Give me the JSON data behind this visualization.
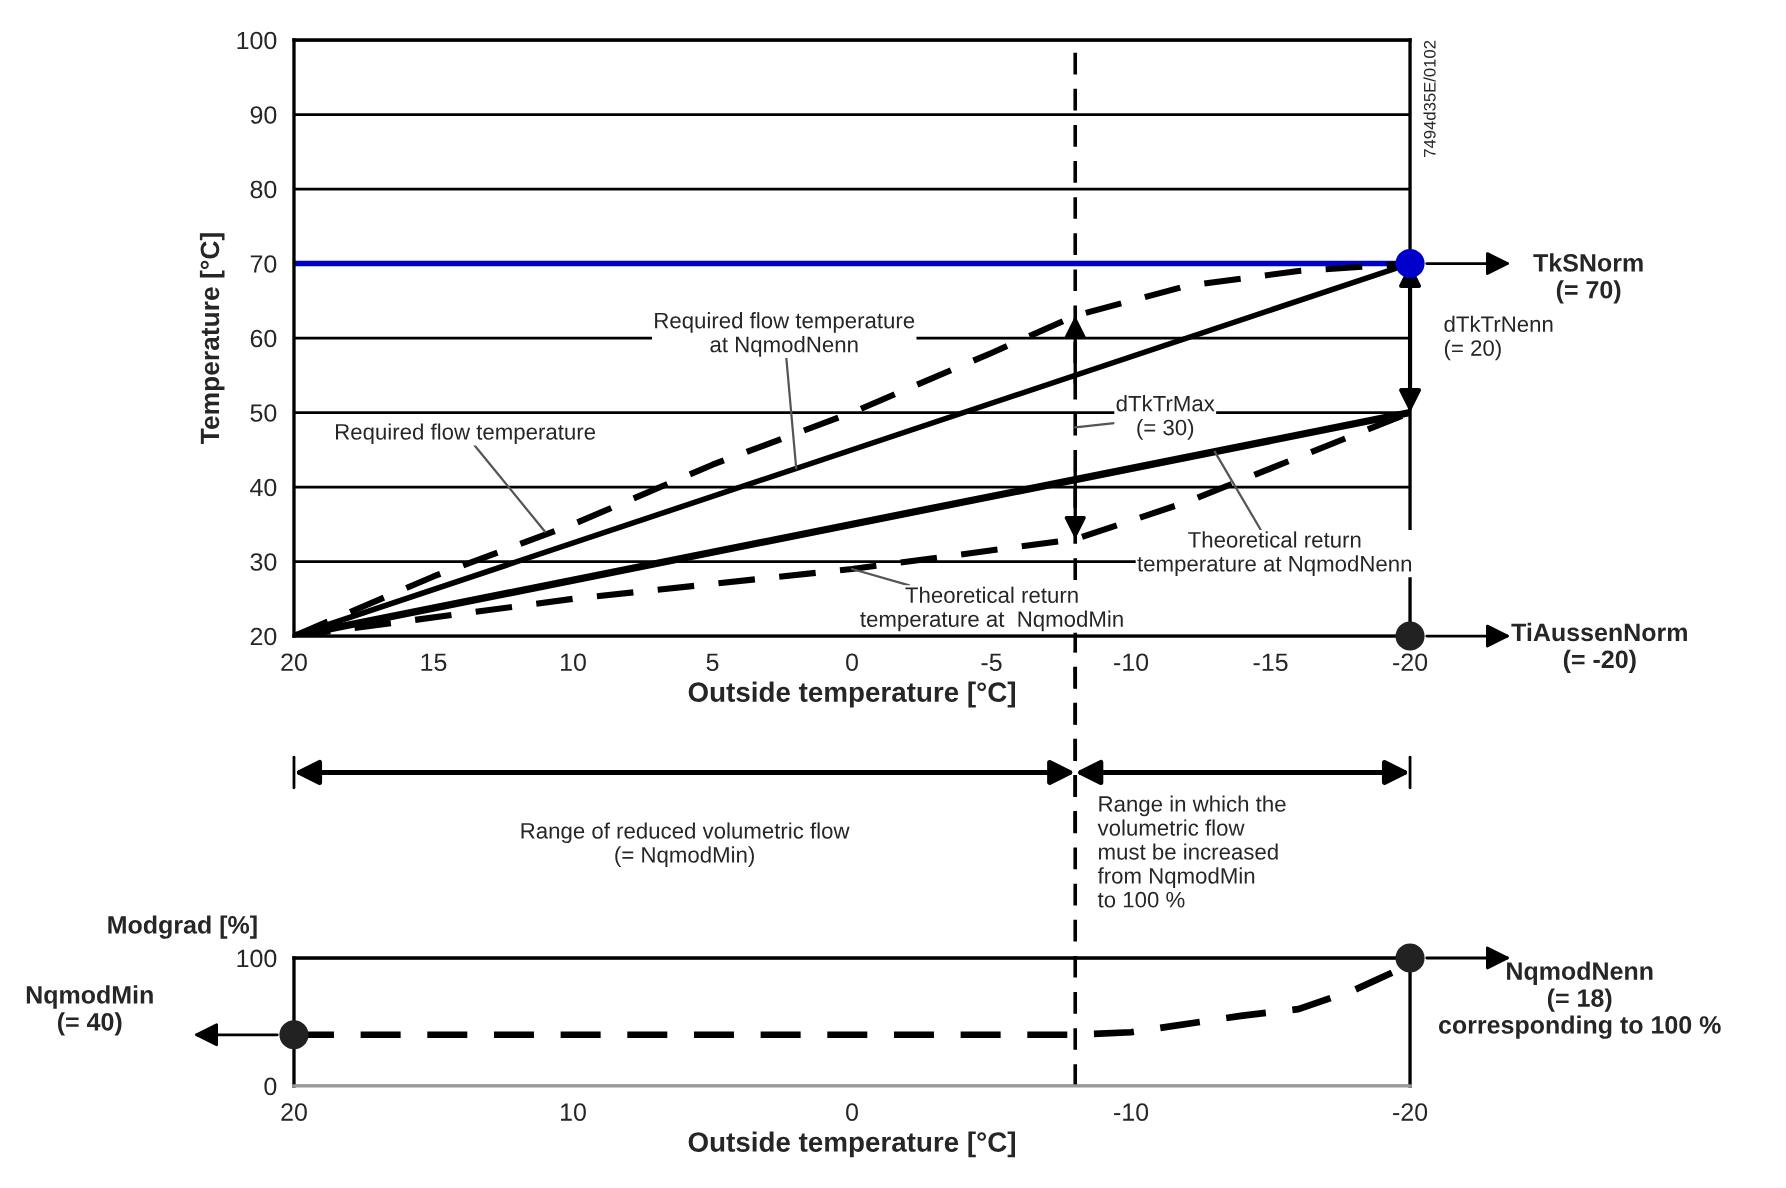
{
  "chart_data": [
    {
      "type": "line",
      "ylabel": "Temperature [°C]",
      "xlabel": "Outside temperature [°C]",
      "xlim": [
        20,
        -20
      ],
      "ylim": [
        20,
        100
      ],
      "xticks": [
        20,
        15,
        10,
        5,
        0,
        -5,
        -10,
        -15,
        -20
      ],
      "yticks": [
        20,
        30,
        40,
        50,
        60,
        70,
        80,
        90,
        100
      ],
      "grid": "y",
      "legend": false,
      "series": [
        {
          "color": "#000000",
          "line_style": "solid",
          "x": [
            20,
            -20
          ],
          "values": [
            20,
            70
          ]
        },
        {
          "color": "#000000",
          "line_style": "solid",
          "x": [
            20,
            -20
          ],
          "values": [
            20,
            50
          ]
        },
        {
          "color": "#000000",
          "line_style": "dashed",
          "x": [
            20,
            15,
            10,
            5,
            0,
            -5,
            -8,
            -12,
            -16,
            -20
          ],
          "values": [
            20,
            28,
            35,
            43,
            50,
            58,
            63,
            67,
            69,
            70
          ]
        },
        {
          "color": "#000000",
          "line_style": "dashed",
          "x": [
            20,
            10,
            0,
            -8,
            -12,
            -16,
            -20
          ],
          "values": [
            20,
            25,
            29,
            33,
            38,
            44,
            50
          ]
        },
        {
          "type": "scatter",
          "color": "#0000cc",
          "x": [
            -20
          ],
          "values": [
            70
          ]
        },
        {
          "type": "scatter",
          "color": "#222222",
          "x": [
            -20
          ],
          "values": [
            20
          ]
        }
      ],
      "ref_lines": [
        {
          "axis": "y",
          "value": 70,
          "color": "#0000cc",
          "line_style": "solid"
        },
        {
          "axis": "x",
          "value": -8,
          "color": "#000000",
          "line_style": "dashed"
        }
      ],
      "annotations": [
        "TkSNorm\n(= 70)",
        "TiAussenNorm\n(= -20)",
        "dTkTrNenn\n(= 20)",
        {
          "text": "dTkTrMax\n(= 30)",
          "x": -8,
          "y": 48
        },
        {
          "text": "Required flow temperature\nat NqmodNenn",
          "x": 2,
          "y": 42.5
        },
        {
          "text": "Required flow temperature",
          "x": 11,
          "y": 34
        },
        {
          "text": "Theoretical return\ntemperature at NqmodNenn",
          "x": -13,
          "y": 44.75
        },
        {
          "text": "Theoretical return\ntemperature at  NqmodMin",
          "x": 0,
          "y": 29
        },
        "7494d35E/0102"
      ]
    },
    {
      "type": "line",
      "ylabel": "Modgrad [%]",
      "xlabel": "Outside temperature [°C]",
      "xlim": [
        20,
        -20
      ],
      "ylim": [
        0,
        100
      ],
      "xticks": [
        20,
        10,
        0,
        -10,
        -20
      ],
      "yticks": [
        0,
        100
      ],
      "grid": "y",
      "legend": false,
      "series": [
        {
          "color": "#000000",
          "line_style": "dashed",
          "x": [
            20,
            -8,
            -10,
            -14,
            -16,
            -18,
            -20
          ],
          "values": [
            40,
            40,
            42,
            55,
            60,
            75,
            95
          ]
        },
        {
          "type": "scatter",
          "color": "#222222",
          "x": [
            20,
            -20
          ],
          "values": [
            40,
            100
          ]
        }
      ],
      "ref_lines": [
        {
          "axis": "x",
          "value": -8,
          "color": "#000000",
          "line_style": "dashed"
        }
      ],
      "annotations": [
        "NqmodNenn\n(= 18)\ncorresponding to 100 %",
        "NqmodMin\n(= 40)",
        "Range of reduced volumetric flow\n(= NqmodMin)",
        "Range in which the\nvolumetric flow\nmust be increased\nfrom NqmodMin\nto 100 %"
      ]
    }
  ]
}
